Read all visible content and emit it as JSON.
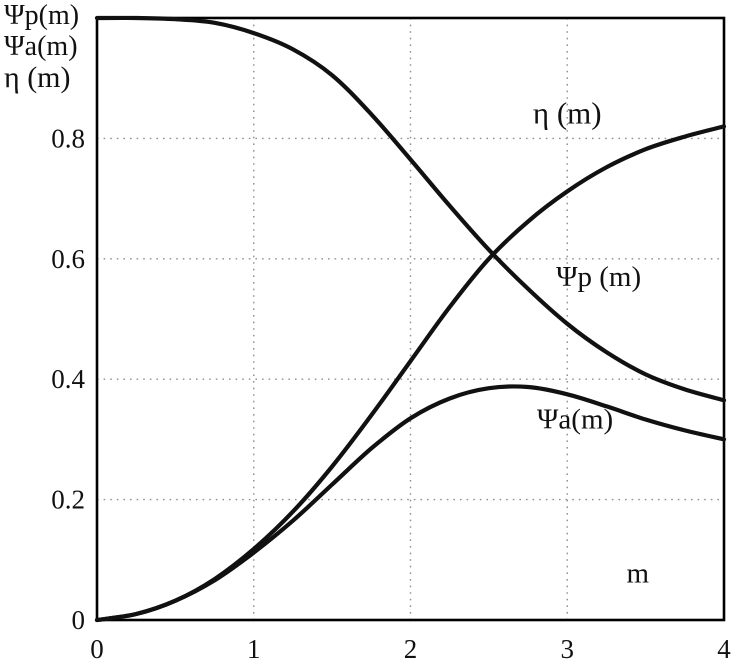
{
  "figure": {
    "background": "#ffffff",
    "frame_color": "#000000",
    "grid_color": "#8f8f8f"
  },
  "chart_data": {
    "type": "line",
    "title": "",
    "xlabel": "m",
    "ylabel": "",
    "x_range": [
      0,
      4
    ],
    "y_range": [
      0,
      1
    ],
    "grid": "dotted",
    "legend_position": "top-left-outside",
    "legend_lines": [
      "Ψp(m)",
      "Ψa(m)",
      "η (m)"
    ],
    "x_ticks": [
      0,
      1,
      2,
      3,
      4
    ],
    "x_tick_labels": [
      "0",
      "1",
      "2",
      "3",
      "4"
    ],
    "y_ticks": [
      0,
      0.2,
      0.4,
      0.6,
      0.8
    ],
    "y_tick_labels": [
      "0",
      "0.2",
      "0.4",
      "0.6",
      "0.8"
    ],
    "xlabel_pos": [
      3.45,
      0.062
    ],
    "line_color": "#111111",
    "line_width": 4.2,
    "x": [
      0,
      0.25,
      0.5,
      0.75,
      1,
      1.25,
      1.5,
      1.75,
      2,
      2.25,
      2.5,
      2.75,
      3,
      3.25,
      3.5,
      3.75,
      4
    ],
    "series": [
      {
        "name": "psi_p",
        "label": "Ψp (m)",
        "label_pos": [
          3.2,
          0.555
        ],
        "values": [
          1.0,
          1.0,
          0.998,
          0.992,
          0.975,
          0.948,
          0.905,
          0.84,
          0.765,
          0.688,
          0.615,
          0.55,
          0.492,
          0.445,
          0.408,
          0.383,
          0.365
        ]
      },
      {
        "name": "eta",
        "label": "η (m)",
        "label_pos": [
          3.0,
          0.825
        ],
        "values": [
          0,
          0.01,
          0.032,
          0.068,
          0.118,
          0.18,
          0.255,
          0.34,
          0.43,
          0.52,
          0.6,
          0.662,
          0.712,
          0.752,
          0.782,
          0.803,
          0.82
        ]
      },
      {
        "name": "psi_a",
        "label": "Ψa(m)",
        "label_pos": [
          3.05,
          0.318
        ],
        "values": [
          0,
          0.01,
          0.032,
          0.066,
          0.112,
          0.165,
          0.225,
          0.285,
          0.335,
          0.368,
          0.385,
          0.387,
          0.375,
          0.355,
          0.333,
          0.315,
          0.3
        ]
      }
    ]
  }
}
